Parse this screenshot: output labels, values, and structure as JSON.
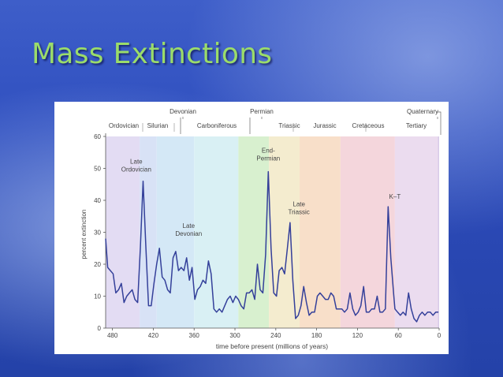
{
  "slide": {
    "title": "Mass Extinctions"
  },
  "chart_data": {
    "type": "line",
    "title": "",
    "xlabel": "time before present (millions of years)",
    "ylabel": "percent extinction",
    "x_reversed": true,
    "xlim": [
      490,
      0
    ],
    "ylim": [
      0,
      60
    ],
    "x_ticks": [
      480,
      420,
      360,
      300,
      240,
      180,
      120,
      60,
      0
    ],
    "y_ticks": [
      0,
      10,
      20,
      30,
      40,
      50,
      60
    ],
    "grid": false,
    "periods_top": [
      "Devonian",
      "Permian",
      "Quaternary"
    ],
    "periods_bottom": [
      "Ordovician",
      "Silurian",
      "Carboniferous",
      "Triassic",
      "Jurassic",
      "Cretaceous",
      "Tertiary"
    ],
    "period_bands": [
      {
        "start": 490,
        "end": 440,
        "color": "#e3dcf3"
      },
      {
        "start": 440,
        "end": 415,
        "color": "#d8e2f6"
      },
      {
        "start": 415,
        "end": 360,
        "color": "#d4e8f6"
      },
      {
        "start": 360,
        "end": 295,
        "color": "#d9f0f4"
      },
      {
        "start": 295,
        "end": 250,
        "color": "#d8f0cf"
      },
      {
        "start": 250,
        "end": 205,
        "color": "#f4eccf"
      },
      {
        "start": 205,
        "end": 145,
        "color": "#f8dfc9"
      },
      {
        "start": 145,
        "end": 65,
        "color": "#f4d6dc"
      },
      {
        "start": 65,
        "end": 2,
        "color": "#ebdcef"
      },
      {
        "start": 2,
        "end": 0,
        "color": "#d9cbe9"
      }
    ],
    "annotations": [
      {
        "text": "Late Ordovician",
        "x": 445,
        "y": 46
      },
      {
        "text": "Late Devonian",
        "x": 368,
        "y": 25
      },
      {
        "text": "End-Permian",
        "x": 251,
        "y": 50
      },
      {
        "text": "Late Triassic",
        "x": 206,
        "y": 34
      },
      {
        "text": "K–T",
        "x": 65,
        "y": 38
      }
    ],
    "series": [
      {
        "color": "#34409a",
        "x": [
          490,
          487,
          483,
          479,
          475,
          471,
          467,
          463,
          459,
          455,
          451,
          447,
          443,
          439,
          435,
          431,
          427,
          423,
          419,
          415,
          411,
          407,
          403,
          399,
          395,
          391,
          387,
          383,
          379,
          375,
          371,
          367,
          363,
          359,
          355,
          351,
          347,
          343,
          339,
          335,
          331,
          327,
          323,
          319,
          315,
          311,
          307,
          303,
          299,
          295,
          291,
          287,
          283,
          279,
          275,
          271,
          267,
          263,
          259,
          255,
          251,
          247,
          243,
          239,
          235,
          231,
          227,
          223,
          219,
          215,
          211,
          207,
          203,
          199,
          195,
          191,
          187,
          183,
          179,
          175,
          171,
          167,
          163,
          159,
          155,
          151,
          147,
          143,
          139,
          135,
          131,
          127,
          123,
          119,
          115,
          111,
          107,
          103,
          99,
          95,
          91,
          87,
          83,
          79,
          75,
          71,
          67,
          65,
          61,
          57,
          53,
          49,
          45,
          41,
          37,
          33,
          29,
          25,
          21,
          17,
          13,
          9,
          5,
          1
        ],
        "values": [
          28,
          19,
          18,
          17,
          11,
          12,
          14,
          8,
          10,
          11,
          12,
          9,
          8,
          25,
          46,
          26,
          7,
          7,
          14,
          20,
          25,
          16,
          15,
          12,
          11,
          22,
          24,
          18,
          19,
          18,
          22,
          15,
          19,
          9,
          12,
          13,
          15,
          14,
          21,
          17,
          6,
          5,
          6,
          5,
          7,
          9,
          10,
          8,
          10,
          9,
          7,
          6,
          11,
          11,
          12,
          9,
          20,
          12,
          11,
          23,
          49,
          25,
          11,
          10,
          18,
          19,
          17,
          25,
          33,
          15,
          3,
          4,
          7,
          13,
          8,
          4,
          5,
          5,
          10,
          11,
          10,
          9,
          9,
          11,
          10,
          6,
          6,
          6,
          5,
          6,
          11,
          6,
          4,
          5,
          7,
          13,
          5,
          5,
          6,
          6,
          10,
          5,
          5,
          6,
          38,
          22,
          11,
          6,
          5,
          4,
          5,
          4,
          11,
          6,
          3,
          2,
          4,
          5,
          4,
          5,
          5,
          4,
          5,
          5
        ]
      }
    ]
  }
}
